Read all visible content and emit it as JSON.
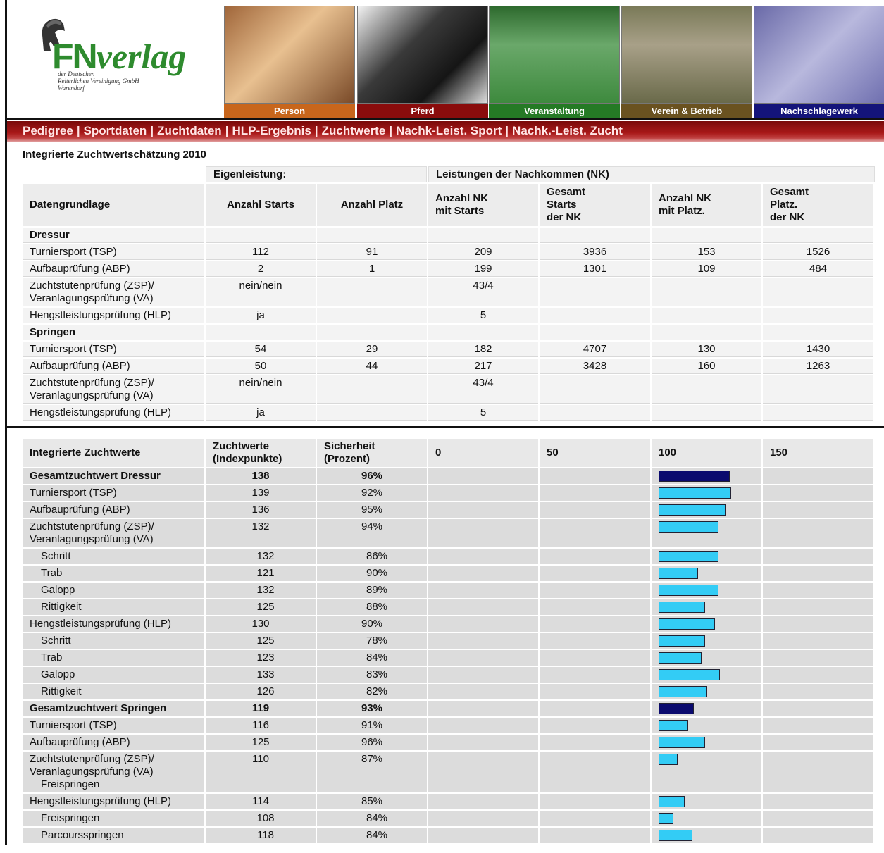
{
  "header": {
    "logo": {
      "brand_bold": "FN",
      "brand_italic": "verlag",
      "lines": [
        "der Deutschen",
        "Reiterlichen Vereinigung GmbH",
        "Warendorf"
      ]
    },
    "tiles": [
      "Person",
      "Pferd",
      "Veranstaltung",
      "Verein & Betrieb",
      "Nachschlagewerk"
    ]
  },
  "nav": {
    "items": [
      "Pedigree",
      "Sportdaten",
      "Zuchtdaten",
      "HLP-Ergebnis",
      "Zuchtwerte",
      "Nachk-Leist. Sport",
      "Nachk.-Leist. Zucht"
    ],
    "separator": "|"
  },
  "table1": {
    "title": "Integrierte Zuchtwertschätzung 2010",
    "group_headers": [
      "Eigenleistung:",
      "Leistungen der Nachkommen (NK)"
    ],
    "columns": [
      "Datengrundlage",
      "Anzahl Starts",
      "Anzahl Platz",
      "Anzahl NK\nmit Starts",
      "Gesamt\nStarts\nder NK",
      "Anzahl NK\nmit Platz.",
      "Gesamt\nPlatz.\nder NK"
    ],
    "rows": [
      {
        "label": "Dressur",
        "section": true
      },
      {
        "label": "Turniersport (TSP)",
        "cells": [
          112,
          91,
          209,
          3936,
          153,
          1526
        ]
      },
      {
        "label": "Aufbauprüfung (ABP)",
        "cells": [
          2,
          1,
          199,
          1301,
          109,
          484
        ]
      },
      {
        "label": "Zuchtstutenprüfung (ZSP)/\nVeranlagungsprüfung (VA)",
        "cells": [
          "nein/nein",
          null,
          "43/4",
          null,
          null,
          null
        ]
      },
      {
        "label": "Hengstleistungsprüfung (HLP)",
        "cells": [
          "ja",
          null,
          5,
          null,
          null,
          null
        ]
      },
      {
        "label": "Springen",
        "section": true
      },
      {
        "label": "Turniersport (TSP)",
        "cells": [
          54,
          29,
          182,
          4707,
          130,
          1430
        ]
      },
      {
        "label": "Aufbauprüfung (ABP)",
        "cells": [
          50,
          44,
          217,
          3428,
          160,
          1263
        ]
      },
      {
        "label": "Zuchtstutenprüfung (ZSP)/\nVeranlagungsprüfung (VA)",
        "cells": [
          "nein/nein",
          null,
          "43/4",
          null,
          null,
          null
        ]
      },
      {
        "label": "Hengstleistungsprüfung (HLP)",
        "cells": [
          "ja",
          null,
          5,
          null,
          null,
          null
        ]
      }
    ]
  },
  "table2": {
    "columns": [
      "Integrierte Zuchtwerte",
      "Zuchtwerte\n(Indexpunkte)",
      "Sicherheit\n(Prozent)"
    ],
    "scale_ticks": [
      0,
      50,
      100,
      150
    ],
    "bar_colors": {
      "total": "#0a0a6e",
      "component": "#33ccf5"
    },
    "rows": [
      {
        "label": "Gesamtzuchtwert Dressur",
        "value": 138,
        "reliability": "96%",
        "bold": true
      },
      {
        "label": "Turniersport (TSP)",
        "value": 139,
        "reliability": "92%"
      },
      {
        "label": "Aufbauprüfung (ABP)",
        "value": 136,
        "reliability": "95%"
      },
      {
        "label": "Zuchtstutenprüfung (ZSP)/\nVeranlagungsprüfung (VA)",
        "value": 132,
        "reliability": "94%"
      },
      {
        "label": "Schritt",
        "value": 132,
        "reliability": "86%",
        "indent": true
      },
      {
        "label": "Trab",
        "value": 121,
        "reliability": "90%",
        "indent": true
      },
      {
        "label": "Galopp",
        "value": 132,
        "reliability": "89%",
        "indent": true
      },
      {
        "label": "Rittigkeit",
        "value": 125,
        "reliability": "88%",
        "indent": true
      },
      {
        "label": "Hengstleistungsprüfung (HLP)",
        "value": 130,
        "reliability": "90%"
      },
      {
        "label": "Schritt",
        "value": 125,
        "reliability": "78%",
        "indent": true
      },
      {
        "label": "Trab",
        "value": 123,
        "reliability": "84%",
        "indent": true
      },
      {
        "label": "Galopp",
        "value": 133,
        "reliability": "83%",
        "indent": true
      },
      {
        "label": "Rittigkeit",
        "value": 126,
        "reliability": "82%",
        "indent": true
      },
      {
        "label": "Gesamtzuchtwert Springen",
        "value": 119,
        "reliability": "93%",
        "bold": true
      },
      {
        "label": "Turniersport (TSP)",
        "value": 116,
        "reliability": "91%"
      },
      {
        "label": "Aufbauprüfung (ABP)",
        "value": 125,
        "reliability": "96%"
      },
      {
        "label": "Zuchtstutenprüfung (ZSP)/\nVeranlagungsprüfung (VA)",
        "sublabel": "Freispringen",
        "value": 110,
        "reliability": "87%"
      },
      {
        "label": "Hengstleistungsprüfung (HLP)",
        "value": 114,
        "reliability": "85%"
      },
      {
        "label": "Freispringen",
        "value": 108,
        "reliability": "84%",
        "indent": true
      },
      {
        "label": "Parcoursspringen",
        "value": 118,
        "reliability": "84%",
        "indent": true
      }
    ]
  }
}
